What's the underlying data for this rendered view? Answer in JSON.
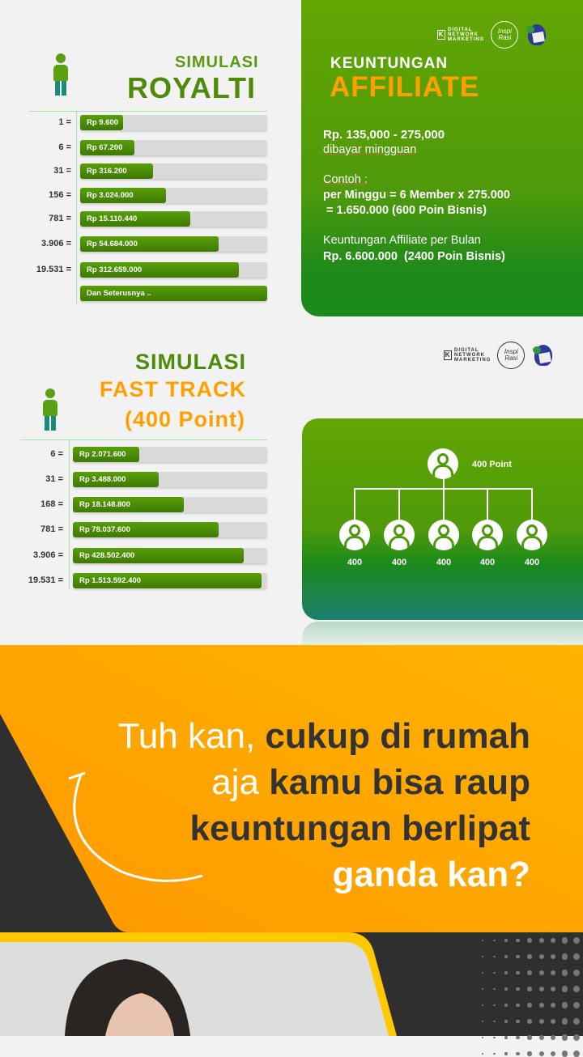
{
  "royalti": {
    "title_small": "SIMULASI",
    "title_big": "ROYALTI",
    "rows": [
      {
        "count": "1 =",
        "amount": "Rp 9.600",
        "fill": 0.23
      },
      {
        "count": "6 =",
        "amount": "Rp 67.200",
        "fill": 0.29
      },
      {
        "count": "31 =",
        "amount": "Rp 316.200",
        "fill": 0.39
      },
      {
        "count": "156 =",
        "amount": "Rp 3.024.000",
        "fill": 0.46
      },
      {
        "count": "781 =",
        "amount": "Rp 15.110.440",
        "fill": 0.59
      },
      {
        "count": "3.906 =",
        "amount": "Rp 54.684.000",
        "fill": 0.74
      },
      {
        "count": "19.531 =",
        "amount": "Rp 312.659.000",
        "fill": 0.85
      },
      {
        "count": "",
        "amount": "Dan Seterusnya ..",
        "fill": 1.0
      }
    ]
  },
  "logos": {
    "dnm": [
      "DIGITAL",
      "NETWORK",
      "MARKETING"
    ],
    "badge": "Inspi Rasi"
  },
  "affiliate": {
    "title_small": "KEUNTUNGAN",
    "title_big": "AFFILIATE",
    "range": "Rp. 135,000 - 275,000",
    "paid": "dibayar mingguan",
    "example_label": "Contoh :",
    "example_line1": "per Minggu = 6 Member x 275.000",
    "example_line2": " = 1.650.000 (600 Poin Bisnis)",
    "monthly_label": "Keuntungan Affiliate per Bulan",
    "monthly_value": "Rp. 6.600.000  (2400 Poin Bisnis)"
  },
  "fasttrack": {
    "title_small": "SIMULASI",
    "title_big": "FAST TRACK",
    "title_sub": "(400 Point)",
    "rows": [
      {
        "count": "6 =",
        "amount": "Rp 2.071.600",
        "fill": 0.34
      },
      {
        "count": "31 =",
        "amount": "Rp 3.488.000",
        "fill": 0.44
      },
      {
        "count": "168 =",
        "amount": "Rp 18.148.800",
        "fill": 0.57
      },
      {
        "count": "781 =",
        "amount": "Rp 78.037.600",
        "fill": 0.75
      },
      {
        "count": "3.906 =",
        "amount": "Rp 428.502.400",
        "fill": 0.88
      },
      {
        "count": "19.531 =",
        "amount": "Rp 1.513.592.400",
        "fill": 0.97
      }
    ]
  },
  "tree": {
    "root_label": "400 Point",
    "children": [
      "400",
      "400",
      "400",
      "400",
      "400"
    ]
  },
  "headline": {
    "l1a": "Tuh kan, ",
    "l1b": "cukup di rumah",
    "l2a": "aja ",
    "l2b": "kamu bisa raup",
    "l3": "keuntungan berlipat",
    "l4": "ganda kan?"
  },
  "colors": {
    "green": "#5a9e0a",
    "orange": "#ffa200",
    "dark": "#2f2f2f",
    "yellow": "#ffc800"
  }
}
